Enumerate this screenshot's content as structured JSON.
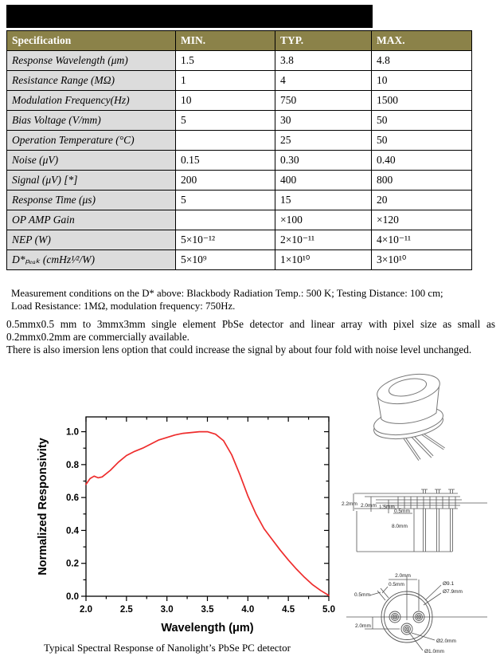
{
  "page": {
    "redacted_title": ""
  },
  "table": {
    "columns": [
      "Specification",
      "MIN.",
      "TYP.",
      "MAX."
    ],
    "rows": [
      {
        "label": "Response Wavelength (μm)",
        "min": "1.5",
        "typ": "3.8",
        "max": "4.8"
      },
      {
        "label": "Resistance Range (MΩ)",
        "min": "1",
        "typ": "4",
        "max": "10"
      },
      {
        "label": "Modulation Frequency(Hz)",
        "min": "10",
        "typ": "750",
        "max": "1500"
      },
      {
        "label": "Bias Voltage (V/mm)",
        "min": "5",
        "typ": "30",
        "max": "50"
      },
      {
        "label": "Operation Temperature (°C)",
        "min": "",
        "typ": "25",
        "max": "50"
      },
      {
        "label": "Noise (μV)",
        "min": "0.15",
        "typ": "0.30",
        "max": "0.40"
      },
      {
        "label": "Signal (μV) [*]",
        "min": "200",
        "typ": "400",
        "max": "800"
      },
      {
        "label": "Response Time (μs)",
        "min": "5",
        "typ": "15",
        "max": "20"
      },
      {
        "label": "OP AMP Gain",
        "min": "",
        "typ": "×100",
        "max": "×120"
      },
      {
        "label": "NEP (W)",
        "min": "5×10⁻¹²",
        "typ": "2×10⁻¹¹",
        "max": "4×10⁻¹¹"
      },
      {
        "label": "D*ₚₑₐₖ (cmHz¹⁄²/W)",
        "min": "5×10⁹",
        "typ": "1×10¹⁰",
        "max": "3×10¹⁰"
      }
    ]
  },
  "notes": {
    "line1": "Measurement conditions on the D* above: Blackbody Radiation Temp.: 500 K; Testing Distance: 100 cm;",
    "line2": "Load Resistance: 1MΩ, modulation frequency: 750Hz."
  },
  "paragraphs": {
    "p1": "0.5mmx0.5 mm to 3mmx3mm single element PbSe detector and linear array with pixel size as small as 0.2mmx0.2mm are commercially available.",
    "p2": "There is also imersion lens option that could increase the signal by about four fold with noise level unchanged."
  },
  "chart_data": {
    "type": "line",
    "title": "",
    "xlabel": "Wavelength (μm)",
    "ylabel": "Normalized Responsivity",
    "xlim": [
      2.0,
      5.0
    ],
    "ylim": [
      0,
      1.09
    ],
    "x_major_tick": 0.5,
    "x_minor_tick": 0.25,
    "y_major_tick": 0.2,
    "y_minor_tick": 0.1,
    "grid": false,
    "legend": "none",
    "line_color": "#ee2c2c",
    "series": [
      {
        "name": "Normalized Responsivity",
        "x": [
          2.0,
          2.05,
          2.1,
          2.15,
          2.2,
          2.3,
          2.4,
          2.5,
          2.6,
          2.7,
          2.8,
          2.9,
          3.0,
          3.1,
          3.2,
          3.3,
          3.4,
          3.5,
          3.6,
          3.7,
          3.8,
          3.9,
          4.0,
          4.1,
          4.2,
          4.3,
          4.4,
          4.5,
          4.6,
          4.7,
          4.8,
          4.9,
          5.0
        ],
        "y": [
          0.68,
          0.715,
          0.73,
          0.72,
          0.725,
          0.765,
          0.815,
          0.855,
          0.88,
          0.9,
          0.925,
          0.95,
          0.965,
          0.98,
          0.99,
          0.995,
          1.0,
          1.0,
          0.985,
          0.945,
          0.86,
          0.74,
          0.61,
          0.5,
          0.41,
          0.345,
          0.28,
          0.22,
          0.165,
          0.115,
          0.07,
          0.035,
          0.005
        ]
      }
    ]
  },
  "figure": {
    "caption": "Typical Spectral Response of Nanolight’s PbSe PC detector"
  },
  "drawings": {
    "side_view": {
      "dims": [
        "2.2mm",
        "2.0mm",
        "1.5mm",
        "0.5mm",
        "8.0mm"
      ]
    },
    "bottom_view": {
      "pin_spacing": "2.0mm",
      "tab_width": "0.5mm",
      "tab_depth": "0.5mm",
      "outer_dia": "Ø9.1",
      "inner_dia": "Ø7.9mm",
      "pin_offset": "2.0mm",
      "pad_dia": "Ø2.0mm",
      "pin_dia": "Ø1.0mm"
    }
  },
  "colors": {
    "header_bg": "#8b8249",
    "row_label_bg": "#dcdcdc",
    "curve": "#ee2c2c",
    "title_bar": "#000000"
  }
}
